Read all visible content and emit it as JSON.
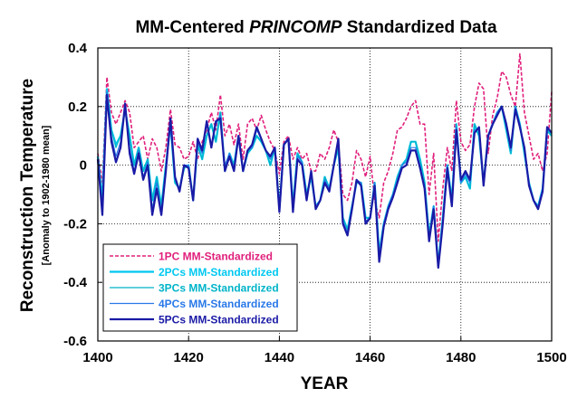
{
  "chart_data": {
    "type": "line",
    "title_prefix": "MM-Centered ",
    "title_italic": "PRINCOMP",
    "title_suffix": " Standardized Data",
    "xlabel": "YEAR",
    "ylabel": "Reconstruction Temperature",
    "ylabel_sub": "[Anomaly to 1902-1980 mean]",
    "xlim": [
      1400,
      1500
    ],
    "ylim": [
      -0.6,
      0.4
    ],
    "xticks": [
      "1400",
      "1420",
      "1440",
      "1460",
      "1480",
      "1500"
    ],
    "yticks": [
      "0.4",
      "0.2",
      "0",
      "-0.2",
      "-0.4",
      "-0.6"
    ],
    "grid": true,
    "legend_position": "bottom-left",
    "x_start": 1400,
    "x_step": 1,
    "series": [
      {
        "name": "1PC MM-Standardized",
        "color": "#e0207c",
        "style": "dashed",
        "values": [
          0.04,
          -0.06,
          0.3,
          0.18,
          0.14,
          0.18,
          0.22,
          0.18,
          0.06,
          0.08,
          0.1,
          0.02,
          0.09,
          0.06,
          -0.02,
          0.06,
          0.19,
          0.07,
          0.06,
          0.02,
          0.03,
          0.08,
          0.02,
          0.08,
          0.12,
          0.18,
          0.12,
          0.24,
          0.1,
          0.14,
          0.07,
          0.14,
          0.02,
          0.14,
          0.16,
          0.12,
          0.17,
          0.12,
          0.08,
          0.05,
          -0.03,
          0.08,
          0.1,
          0.02,
          0.06,
          0.02,
          0.04,
          -0.02,
          -0.02,
          0.04,
          0.02,
          0.06,
          0.12,
          0.08,
          -0.1,
          -0.12,
          -0.06,
          0.05,
          0.02,
          -0.04,
          0.03,
          -0.12,
          -0.18,
          -0.06,
          -0.02,
          0.04,
          0.12,
          0.13,
          0.16,
          0.2,
          0.22,
          0.14,
          0.14,
          -0.1,
          0.04,
          -0.26,
          -0.08,
          0.06,
          -0.02,
          0.22,
          0.08,
          0.05,
          0.07,
          0.2,
          0.28,
          0.26,
          0.04,
          0.17,
          0.23,
          0.32,
          0.3,
          0.24,
          0.2,
          0.38,
          0.18,
          0.1,
          0.02,
          0.04,
          -0.02,
          0.04,
          0.25
        ]
      },
      {
        "name": "2PCs MM-Standardized",
        "color": "#00c8f0",
        "style": "solid",
        "values": [
          0.03,
          -0.12,
          0.26,
          0.12,
          0.07,
          0.1,
          0.19,
          0.1,
          0.0,
          0.06,
          -0.02,
          0.02,
          -0.12,
          -0.04,
          -0.14,
          0.0,
          0.14,
          -0.06,
          -0.08,
          -0.01,
          0.0,
          -0.12,
          0.07,
          0.02,
          0.1,
          0.14,
          0.08,
          0.18,
          -0.02,
          0.04,
          0.0,
          0.1,
          -0.02,
          0.04,
          0.06,
          0.1,
          0.08,
          0.05,
          0.0,
          0.06,
          -0.15,
          0.07,
          0.09,
          -0.14,
          0.04,
          0.01,
          -0.1,
          -0.04,
          -0.14,
          -0.12,
          -0.04,
          -0.08,
          0.0,
          0.06,
          -0.18,
          -0.22,
          -0.14,
          -0.06,
          -0.06,
          -0.18,
          -0.18,
          -0.06,
          -0.3,
          -0.2,
          -0.14,
          -0.1,
          -0.04,
          0.0,
          0.02,
          0.08,
          0.08,
          0.02,
          -0.06,
          -0.24,
          -0.14,
          -0.34,
          -0.18,
          0.0,
          -0.12,
          0.14,
          -0.06,
          -0.04,
          -0.08,
          0.14,
          0.1,
          -0.06,
          0.1,
          0.14,
          0.18,
          0.2,
          0.12,
          0.04,
          0.2,
          0.14,
          0.04,
          -0.06,
          -0.12,
          -0.14,
          -0.08,
          0.12,
          0.1
        ]
      },
      {
        "name": "3PCs MM-Standardized",
        "color": "#00b4c8",
        "style": "solid",
        "values": [
          0.03,
          -0.13,
          0.25,
          0.12,
          0.06,
          0.1,
          0.19,
          0.1,
          0.0,
          0.06,
          -0.02,
          0.02,
          -0.12,
          -0.04,
          -0.14,
          0.0,
          0.14,
          -0.06,
          -0.08,
          -0.01,
          0.0,
          -0.12,
          0.07,
          0.02,
          0.1,
          0.14,
          0.08,
          0.18,
          -0.02,
          0.04,
          0.0,
          0.1,
          -0.02,
          0.04,
          0.06,
          0.1,
          0.08,
          0.05,
          0.0,
          0.06,
          -0.15,
          0.07,
          0.09,
          -0.14,
          0.04,
          0.01,
          -0.1,
          -0.04,
          -0.14,
          -0.12,
          -0.04,
          -0.08,
          0.0,
          0.06,
          -0.18,
          -0.22,
          -0.14,
          -0.06,
          -0.06,
          -0.18,
          -0.18,
          -0.06,
          -0.3,
          -0.2,
          -0.14,
          -0.1,
          -0.04,
          0.0,
          0.02,
          0.08,
          0.08,
          0.02,
          -0.06,
          -0.24,
          -0.14,
          -0.34,
          -0.18,
          0.0,
          -0.12,
          0.14,
          -0.06,
          -0.04,
          -0.08,
          0.14,
          0.1,
          -0.06,
          0.1,
          0.14,
          0.18,
          0.2,
          0.12,
          0.04,
          0.2,
          0.14,
          0.04,
          -0.06,
          -0.12,
          -0.14,
          -0.08,
          0.12,
          0.1
        ]
      },
      {
        "name": "4PCs MM-Standardized",
        "color": "#2878e8",
        "style": "solid",
        "values": [
          0.02,
          -0.15,
          0.25,
          0.1,
          0.03,
          0.08,
          0.2,
          0.06,
          -0.02,
          0.05,
          -0.04,
          0.01,
          -0.15,
          -0.06,
          -0.16,
          -0.01,
          0.15,
          -0.05,
          -0.08,
          0.0,
          0.0,
          -0.12,
          0.08,
          0.04,
          0.14,
          0.07,
          0.14,
          0.17,
          0.0,
          0.04,
          -0.01,
          0.1,
          -0.02,
          0.05,
          0.06,
          0.12,
          0.09,
          0.05,
          0.02,
          0.06,
          -0.15,
          0.07,
          0.09,
          -0.15,
          0.03,
          0.01,
          -0.11,
          -0.03,
          -0.14,
          -0.12,
          -0.05,
          -0.08,
          0.0,
          0.08,
          -0.19,
          -0.23,
          -0.14,
          -0.05,
          -0.06,
          -0.19,
          -0.18,
          -0.06,
          -0.31,
          -0.2,
          -0.14,
          -0.1,
          -0.05,
          0.0,
          0.01,
          0.06,
          0.06,
          0.0,
          -0.07,
          -0.25,
          -0.14,
          -0.34,
          -0.19,
          0.0,
          -0.13,
          0.13,
          -0.06,
          -0.03,
          -0.06,
          0.12,
          0.12,
          -0.06,
          0.1,
          0.14,
          0.18,
          0.2,
          0.13,
          0.05,
          0.2,
          0.14,
          0.05,
          -0.06,
          -0.12,
          -0.14,
          -0.08,
          0.13,
          0.11
        ]
      },
      {
        "name": "5PCs MM-Standardized",
        "color": "#1a1aa6",
        "style": "solid",
        "values": [
          0.02,
          -0.17,
          0.24,
          0.08,
          0.01,
          0.06,
          0.21,
          0.04,
          -0.03,
          0.04,
          -0.05,
          0.0,
          -0.17,
          -0.08,
          -0.17,
          -0.02,
          0.16,
          -0.04,
          -0.09,
          0.0,
          -0.01,
          -0.12,
          0.09,
          0.05,
          0.15,
          0.06,
          0.15,
          0.16,
          -0.02,
          0.03,
          -0.02,
          0.1,
          -0.02,
          0.05,
          0.07,
          0.13,
          0.09,
          0.05,
          0.03,
          0.06,
          -0.16,
          0.07,
          0.09,
          -0.16,
          0.02,
          0.0,
          -0.12,
          -0.02,
          -0.15,
          -0.12,
          -0.06,
          -0.09,
          0.0,
          0.09,
          -0.2,
          -0.24,
          -0.15,
          -0.05,
          -0.07,
          -0.2,
          -0.18,
          -0.07,
          -0.33,
          -0.21,
          -0.15,
          -0.11,
          -0.06,
          -0.01,
          0.0,
          0.05,
          0.05,
          -0.01,
          -0.08,
          -0.26,
          -0.15,
          -0.35,
          -0.2,
          -0.01,
          -0.14,
          0.12,
          -0.05,
          -0.02,
          -0.05,
          0.11,
          0.13,
          -0.07,
          0.1,
          0.14,
          0.17,
          0.2,
          0.14,
          0.06,
          0.19,
          0.13,
          0.06,
          -0.07,
          -0.12,
          -0.15,
          -0.09,
          0.13,
          0.11
        ]
      }
    ]
  }
}
